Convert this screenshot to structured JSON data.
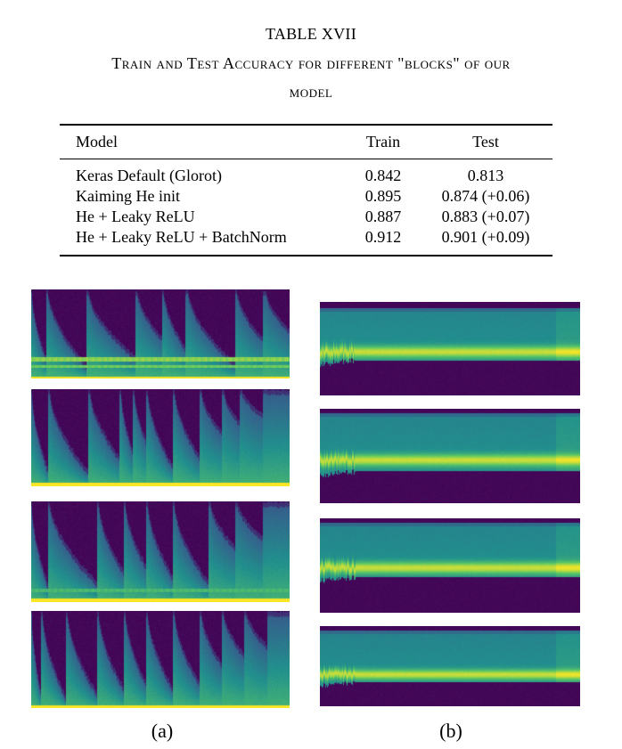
{
  "table": {
    "number": "TABLE XVII",
    "caption_line1": "Train and Test Accuracy for different \"blocks\" of our",
    "caption_line2": "model",
    "headers": [
      "Model",
      "Train",
      "Test"
    ],
    "rows": [
      {
        "model": "Keras Default (Glorot)",
        "train": "0.842",
        "test": "0.813"
      },
      {
        "model": "Kaiming He init",
        "train": "0.895",
        "test": "0.874 (+0.06)"
      },
      {
        "model": "He + Leaky ReLU",
        "train": "0.887",
        "test": "0.883 (+0.07)"
      },
      {
        "model": "He + Leaky ReLU + BatchNorm",
        "train": "0.912",
        "test": "0.901 (+0.09)"
      }
    ]
  },
  "figure": {
    "label_a": "(a)",
    "label_b": "(b)",
    "colormap": [
      "#440154",
      "#3b528b",
      "#21908d",
      "#5dc963",
      "#fde725"
    ]
  }
}
